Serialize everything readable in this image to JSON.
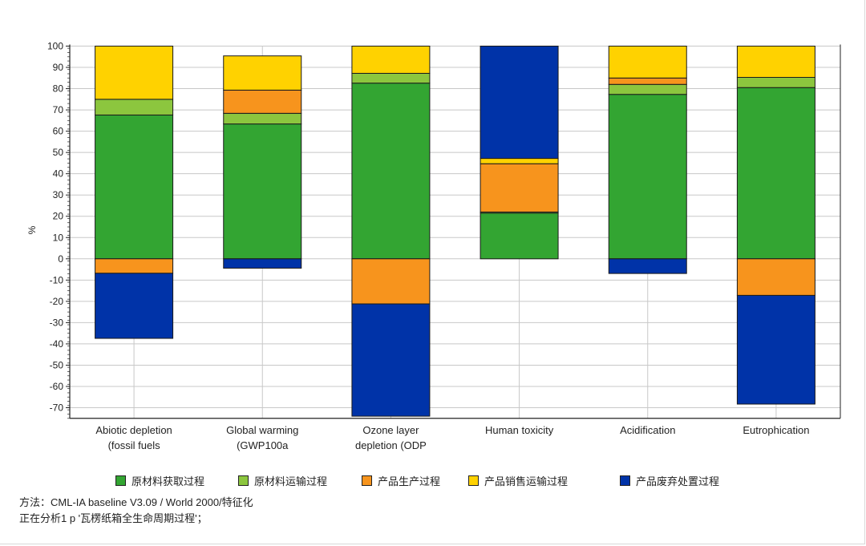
{
  "chart_data": {
    "type": "bar",
    "stacked": true,
    "ylabel": "%",
    "xlabel": "",
    "ylim": [
      -75,
      100
    ],
    "yticks": [
      100,
      90,
      80,
      70,
      60,
      50,
      40,
      30,
      20,
      10,
      0,
      -10,
      -20,
      -30,
      -40,
      -50,
      -60,
      -70
    ],
    "grid": true,
    "legend_position": "bottom",
    "categories": [
      [
        "Abiotic depletion",
        "(fossil fuels"
      ],
      [
        "Global warming",
        "(GWP100a"
      ],
      [
        "Ozone layer",
        "depletion (ODP"
      ],
      [
        "Human toxicity"
      ],
      [
        "Acidification"
      ],
      [
        "Eutrophication"
      ]
    ],
    "series": [
      {
        "name": "原材料获取过程",
        "color": "#33a532",
        "values": [
          67.6,
          63.4,
          82.6,
          21.5,
          77.3,
          80.5
        ]
      },
      {
        "name": "原材料运输过程",
        "color": "#8cc63e",
        "values": [
          7.4,
          5.0,
          4.6,
          0.5,
          4.7,
          4.8
        ]
      },
      {
        "name": "产品生产过程",
        "color": "#f7941d",
        "values": [
          -6.8,
          10.9,
          -21.2,
          22.7,
          3.0,
          -17.2
        ]
      },
      {
        "name": "产品销售运输过程",
        "color": "#ffd200",
        "values": [
          25.0,
          16.1,
          12.8,
          2.5,
          15.0,
          14.7
        ]
      },
      {
        "name": "产品废弃处置过程",
        "color": "#0033a8",
        "values": [
          -30.6,
          -4.4,
          -52.8,
          52.8,
          -6.9,
          -51.1
        ]
      }
    ]
  },
  "footer": {
    "method": "方法：CML-IA baseline V3.09 / World 2000/特征化",
    "analysis": "正在分析1 p '瓦楞纸箱全生命周期过程'；"
  }
}
